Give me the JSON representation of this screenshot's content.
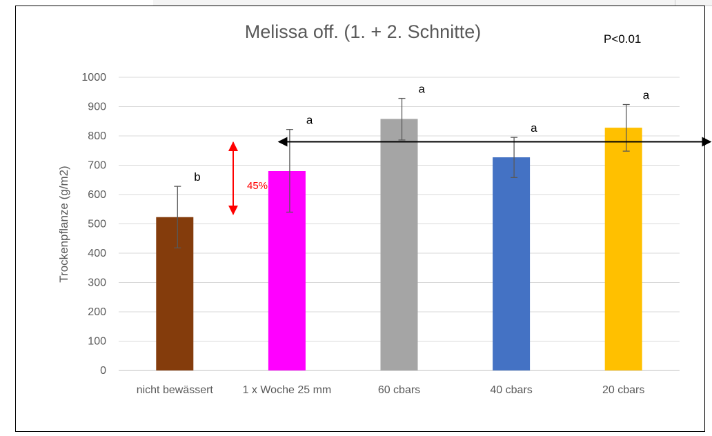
{
  "chart_data": {
    "type": "bar",
    "title": "Melissa off. (1. + 2. Schnitte)",
    "annotation_p": "P<0.01",
    "ylabel": "Trockenpflanze (g/m2)",
    "xlabel": "",
    "ylim": [
      0,
      1000
    ],
    "yticks": [
      "0",
      "100",
      "200",
      "300",
      "400",
      "500",
      "600",
      "700",
      "800",
      "900",
      "1000"
    ],
    "grid": true,
    "categories": [
      "nicht bewässert",
      "1 x Woche 25 mm",
      "60 cbars",
      "40 cbars",
      "20 cbars"
    ],
    "values": [
      523,
      680,
      858,
      727,
      828
    ],
    "error_low": [
      418,
      540,
      786,
      658,
      748
    ],
    "error_high": [
      628,
      822,
      928,
      795,
      907
    ],
    "significance": [
      "b",
      "a",
      "a",
      "a",
      "a"
    ],
    "colors": [
      "#843c0c",
      "#ff00ff",
      "#a5a5a5",
      "#4472c4",
      "#ffc000"
    ],
    "difference_label": "45%",
    "difference_color": "#ff0000",
    "difference_range": [
      533,
      778
    ],
    "reference_line_value": 780
  }
}
